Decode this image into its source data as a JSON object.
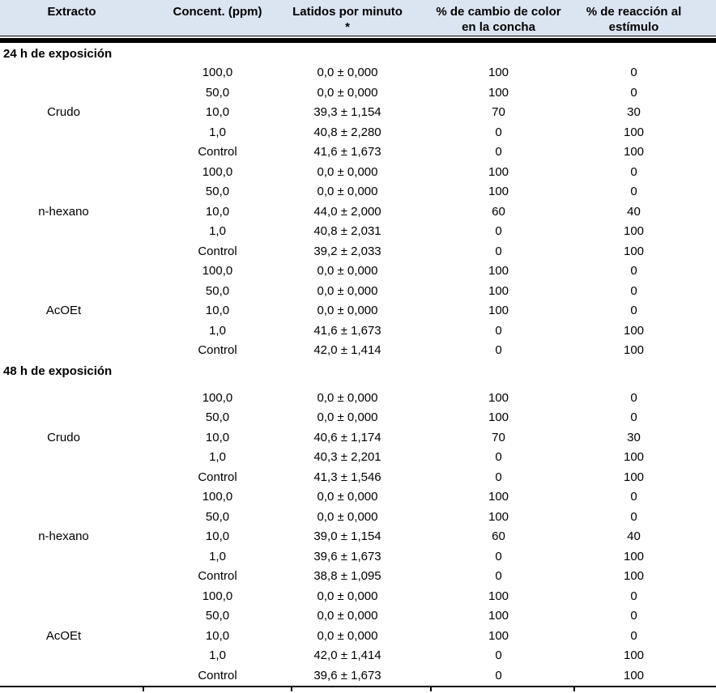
{
  "colors": {
    "header_bg": "#dbe5f1",
    "text": "#000000",
    "rule": "#000000"
  },
  "table": {
    "headers": [
      {
        "line1": "Extracto",
        "line2": ""
      },
      {
        "line1": "Concent. (ppm)",
        "line2": ""
      },
      {
        "line1": "Latidos por minuto *",
        "line2": ""
      },
      {
        "line1": "% de cambio de color",
        "line2": "en la concha"
      },
      {
        "line1": "% de  reacción al",
        "line2": "estímulo"
      }
    ],
    "sections": [
      {
        "label": "24 h de exposición",
        "groups": [
          {
            "extract": "Crudo",
            "rows": [
              {
                "conc": "100,0",
                "latidos": "0,0 ± 0,000",
                "cambio": "100",
                "reaccion": "0"
              },
              {
                "conc": "50,0",
                "latidos": "0,0 ± 0,000",
                "cambio": "100",
                "reaccion": "0"
              },
              {
                "conc": "10,0",
                "latidos": "39,3 ± 1,154",
                "cambio": "70",
                "reaccion": "30"
              },
              {
                "conc": "1,0",
                "latidos": "40,8 ± 2,280",
                "cambio": "0",
                "reaccion": "100"
              },
              {
                "conc": "Control",
                "latidos": "41,6 ± 1,673",
                "cambio": "0",
                "reaccion": "100"
              }
            ]
          },
          {
            "extract": "n-hexano",
            "rows": [
              {
                "conc": "100,0",
                "latidos": "0,0 ± 0,000",
                "cambio": "100",
                "reaccion": "0"
              },
              {
                "conc": "50,0",
                "latidos": "0,0 ± 0,000",
                "cambio": "100",
                "reaccion": "0"
              },
              {
                "conc": "10,0",
                "latidos": "44,0 ± 2,000",
                "cambio": "60",
                "reaccion": "40"
              },
              {
                "conc": "1,0",
                "latidos": "40,8 ± 2,031",
                "cambio": "0",
                "reaccion": "100"
              },
              {
                "conc": "Control",
                "latidos": "39,2 ± 2,033",
                "cambio": "0",
                "reaccion": "100"
              }
            ]
          },
          {
            "extract": "AcOEt",
            "rows": [
              {
                "conc": "100,0",
                "latidos": "0,0 ± 0,000",
                "cambio": "100",
                "reaccion": "0"
              },
              {
                "conc": "50,0",
                "latidos": "0,0 ± 0,000",
                "cambio": "100",
                "reaccion": "0"
              },
              {
                "conc": "10,0",
                "latidos": "0,0 ± 0,000",
                "cambio": "100",
                "reaccion": "0"
              },
              {
                "conc": "1,0",
                "latidos": "41,6 ± 1,673",
                "cambio": "0",
                "reaccion": "100"
              },
              {
                "conc": "Control",
                "latidos": "42,0 ± 1,414",
                "cambio": "0",
                "reaccion": "100"
              }
            ]
          }
        ]
      },
      {
        "label": "48 h de exposición",
        "groups": [
          {
            "extract": "Crudo",
            "rows": [
              {
                "conc": "100,0",
                "latidos": "0,0 ± 0,000",
                "cambio": "100",
                "reaccion": "0"
              },
              {
                "conc": "50,0",
                "latidos": "0,0 ± 0,000",
                "cambio": "100",
                "reaccion": "0"
              },
              {
                "conc": "10,0",
                "latidos": "40,6 ± 1,174",
                "cambio": "70",
                "reaccion": "30"
              },
              {
                "conc": "1,0",
                "latidos": "40,3 ± 2,201",
                "cambio": "0",
                "reaccion": "100"
              },
              {
                "conc": "Control",
                "latidos": "41,3 ± 1,546",
                "cambio": "0",
                "reaccion": "100"
              }
            ]
          },
          {
            "extract": "n-hexano",
            "rows": [
              {
                "conc": "100,0",
                "latidos": "0,0 ± 0,000",
                "cambio": "100",
                "reaccion": "0"
              },
              {
                "conc": "50,0",
                "latidos": "0,0 ± 0,000",
                "cambio": "100",
                "reaccion": "0"
              },
              {
                "conc": "10,0",
                "latidos": "39,0 ± 1,154",
                "cambio": "60",
                "reaccion": "40"
              },
              {
                "conc": "1,0",
                "latidos": "39,6 ± 1,673",
                "cambio": "0",
                "reaccion": "100"
              },
              {
                "conc": "Control",
                "latidos": "38,8 ± 1,095",
                "cambio": "0",
                "reaccion": "100"
              }
            ]
          },
          {
            "extract": "AcOEt",
            "rows": [
              {
                "conc": "100,0",
                "latidos": "0,0 ± 0,000",
                "cambio": "100",
                "reaccion": "0"
              },
              {
                "conc": "50,0",
                "latidos": "0,0 ± 0,000",
                "cambio": "100",
                "reaccion": "0"
              },
              {
                "conc": "10,0",
                "latidos": "0,0 ± 0,000",
                "cambio": "100",
                "reaccion": "0"
              },
              {
                "conc": "1,0",
                "latidos": "42,0 ± 1,414",
                "cambio": "0",
                "reaccion": "100"
              },
              {
                "conc": "Control",
                "latidos": "39,6 ± 1,673",
                "cambio": "0",
                "reaccion": "100"
              }
            ]
          }
        ]
      }
    ]
  }
}
